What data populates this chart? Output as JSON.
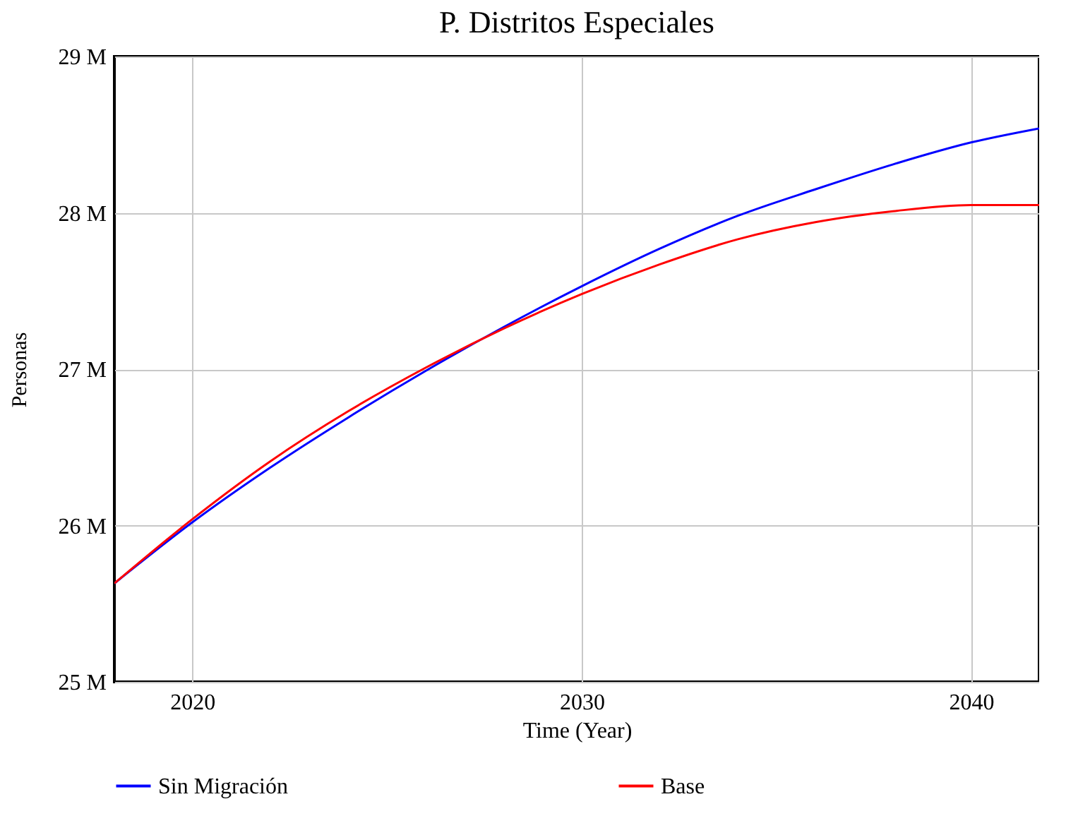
{
  "chart_data": {
    "type": "line",
    "title": "P. Distritos Especiales",
    "xlabel": "Time (Year)",
    "ylabel": "Personas",
    "xlim": [
      2018,
      2041.75
    ],
    "xticks": [
      2020,
      2030,
      2040
    ],
    "ylim": [
      25,
      29
    ],
    "yticks": [
      {
        "value": 25,
        "label": "25 M"
      },
      {
        "value": 26,
        "label": "26 M"
      },
      {
        "value": 27,
        "label": "27 M"
      },
      {
        "value": 28,
        "label": "28 M"
      },
      {
        "value": 29,
        "label": "29 M"
      }
    ],
    "grid": true,
    "legend": "bottom",
    "marker": "none",
    "line_style": "solid",
    "series": [
      {
        "name": "Sin Migración",
        "color": "#0000ff",
        "x": [
          2018,
          2020,
          2022,
          2024,
          2026,
          2028,
          2030,
          2032,
          2034,
          2036,
          2038,
          2040,
          2041.75
        ],
        "values": [
          25.63,
          26.02,
          26.37,
          26.69,
          26.99,
          27.27,
          27.53,
          27.77,
          27.98,
          28.15,
          28.31,
          28.45,
          28.54
        ]
      },
      {
        "name": "Base",
        "color": "#ff0000",
        "x": [
          2018,
          2020,
          2022,
          2024,
          2026,
          2028,
          2030,
          2032,
          2034,
          2036,
          2038,
          2040,
          2041.75
        ],
        "values": [
          25.63,
          26.04,
          26.41,
          26.73,
          27.01,
          27.26,
          27.48,
          27.67,
          27.83,
          27.94,
          28.01,
          28.05,
          28.05
        ]
      }
    ]
  }
}
